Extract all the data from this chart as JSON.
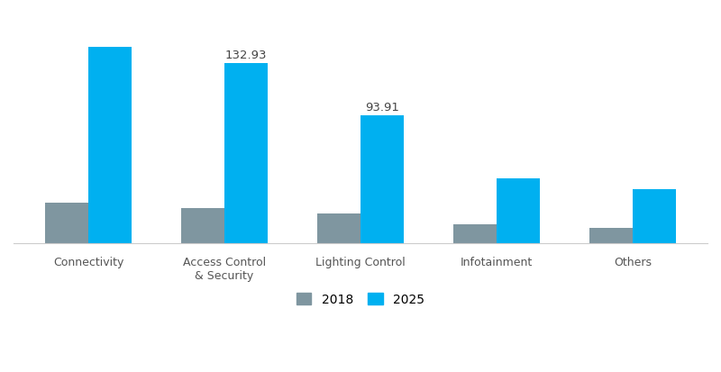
{
  "categories": [
    "Connectivity",
    "Access Control\n& Security",
    "Lighting Control",
    "Infotainment",
    "Others"
  ],
  "values_2018": [
    30.0,
    26.0,
    22.0,
    14.0,
    11.0
  ],
  "values_2025": [
    145.0,
    132.93,
    93.91,
    48.0,
    40.0
  ],
  "labels_2025": [
    "",
    "132.93",
    "93.91",
    "",
    ""
  ],
  "color_2018": "#7f96a0",
  "color_2025": "#00b0f0",
  "legend_2018": "2018",
  "legend_2025": "2025",
  "bar_width": 0.32,
  "background_color": "#ffffff",
  "label_fontsize": 9.5,
  "axis_label_fontsize": 9,
  "legend_fontsize": 10,
  "ylim": [
    0,
    170
  ]
}
